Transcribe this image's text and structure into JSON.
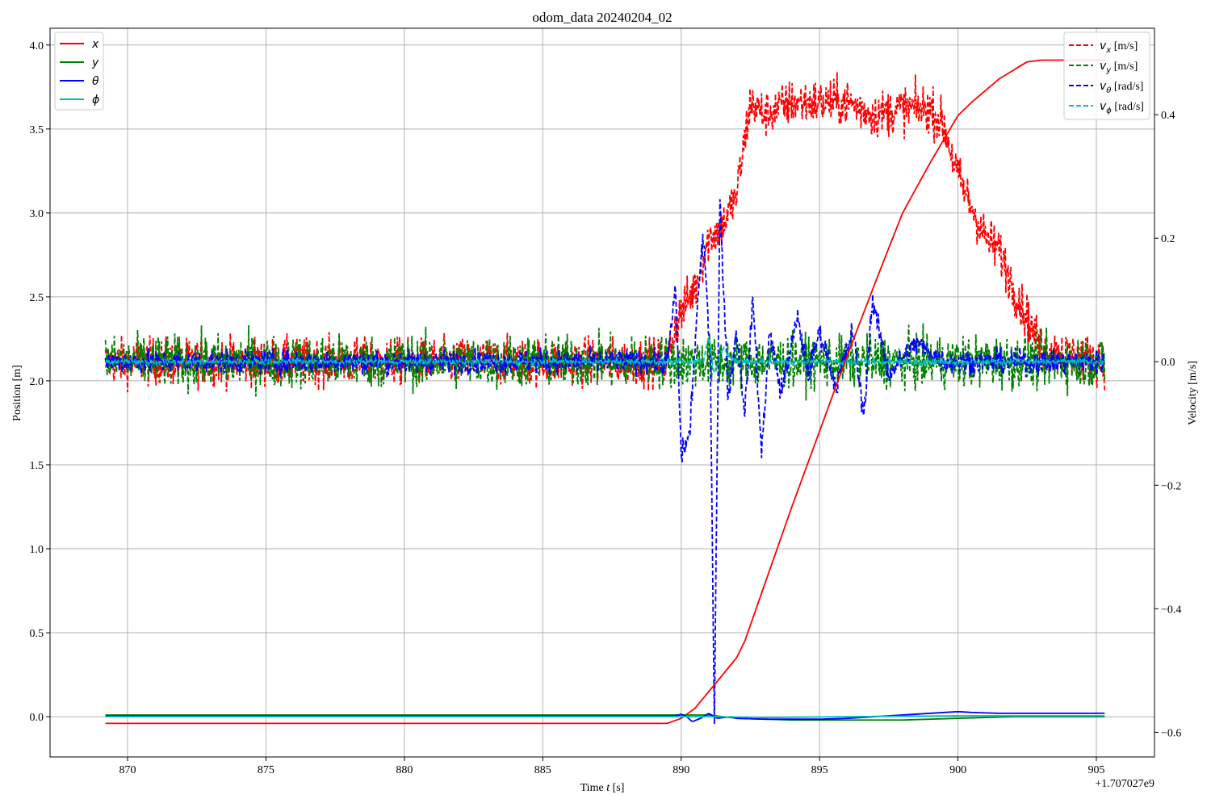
{
  "chart_data": {
    "type": "line",
    "title": "odom_data 20240204_02",
    "xlabel": "Time $t$ [s]",
    "xlabel_parts": {
      "prefix": "Time ",
      "italic": "t",
      "suffix": " [s]"
    },
    "x_offset_label": "+1.707027e9",
    "ylabel_left": "Position [m]",
    "ylabel_right": "Velocity [m/s]",
    "xlim": [
      867.2,
      907.1
    ],
    "ylim_left": [
      -0.24,
      4.1
    ],
    "ylim_right": [
      -0.64,
      0.54
    ],
    "xticks": [
      870,
      875,
      880,
      885,
      890,
      895,
      900,
      905
    ],
    "xtick_labels": [
      "870",
      "875",
      "880",
      "885",
      "890",
      "895",
      "900",
      "905"
    ],
    "yticks_left": [
      0.0,
      0.5,
      1.0,
      1.5,
      2.0,
      2.5,
      3.0,
      3.5,
      4.0
    ],
    "ytick_left_labels": [
      "0.0",
      "0.5",
      "1.0",
      "1.5",
      "2.0",
      "2.5",
      "3.0",
      "3.5",
      "4.0"
    ],
    "yticks_right": [
      -0.6,
      -0.4,
      -0.2,
      0.0,
      0.2,
      0.4
    ],
    "ytick_right_labels": [
      "−0.6",
      "−0.4",
      "−0.2",
      "0.0",
      "0.2",
      "0.4"
    ],
    "grid": true,
    "legend_left": {
      "placement": "top-left",
      "entries": [
        {
          "symbol": "x",
          "color": "#ff0000"
        },
        {
          "symbol": "y",
          "color": "#008000"
        },
        {
          "symbol": "θ",
          "color": "#0000ff"
        },
        {
          "symbol": "ϕ",
          "color": "#00bfbf"
        }
      ]
    },
    "legend_right": {
      "placement": "top-right",
      "entries": [
        {
          "symbol": "v",
          "sub": "x",
          "unit": "[m/s]",
          "color": "#ff0000"
        },
        {
          "symbol": "v",
          "sub": "y",
          "unit": "[m/s]",
          "color": "#008000"
        },
        {
          "symbol": "v",
          "sub": "θ",
          "unit": "[rad/s]",
          "color": "#0000ff"
        },
        {
          "symbol": "v",
          "sub": "ϕ",
          "unit": "[rad/s]",
          "color": "#00bfbf"
        }
      ]
    },
    "position_series": [
      {
        "name": "x",
        "color": "#ff0000",
        "axis": "left",
        "points": [
          [
            869.2,
            -0.04
          ],
          [
            889.5,
            -0.04
          ],
          [
            890.0,
            -0.01
          ],
          [
            890.5,
            0.05
          ],
          [
            891.0,
            0.15
          ],
          [
            891.5,
            0.25
          ],
          [
            892.0,
            0.35
          ],
          [
            892.3,
            0.45
          ],
          [
            893.0,
            0.78
          ],
          [
            894.0,
            1.25
          ],
          [
            895.0,
            1.7
          ],
          [
            896.0,
            2.15
          ],
          [
            897.0,
            2.58
          ],
          [
            898.0,
            3.0
          ],
          [
            899.0,
            3.3
          ],
          [
            900.0,
            3.58
          ],
          [
            900.5,
            3.66
          ],
          [
            901.0,
            3.73
          ],
          [
            901.5,
            3.8
          ],
          [
            902.0,
            3.85
          ],
          [
            902.5,
            3.9
          ],
          [
            903.0,
            3.91
          ],
          [
            905.3,
            3.91
          ]
        ]
      },
      {
        "name": "y",
        "color": "#008000",
        "axis": "left",
        "points": [
          [
            869.2,
            0.01
          ],
          [
            891.0,
            0.01
          ],
          [
            892.0,
            -0.01
          ],
          [
            894.0,
            -0.02
          ],
          [
            896.0,
            -0.02
          ],
          [
            898.0,
            -0.02
          ],
          [
            900.0,
            -0.01
          ],
          [
            902.0,
            0.0
          ],
          [
            905.3,
            0.0
          ]
        ]
      },
      {
        "name": "θ",
        "color": "#0000ff",
        "axis": "left",
        "points": [
          [
            869.2,
            0.005
          ],
          [
            889.8,
            0.005
          ],
          [
            890.0,
            0.015
          ],
          [
            890.2,
            0.0
          ],
          [
            890.4,
            -0.03
          ],
          [
            890.7,
            -0.01
          ],
          [
            891.0,
            0.02
          ],
          [
            891.3,
            -0.01
          ],
          [
            891.8,
            0.0
          ],
          [
            892.0,
            -0.01
          ],
          [
            893.0,
            -0.015
          ],
          [
            895.0,
            -0.015
          ],
          [
            896.0,
            -0.01
          ],
          [
            897.0,
            0.0
          ],
          [
            898.0,
            0.01
          ],
          [
            899.0,
            0.02
          ],
          [
            900.0,
            0.03
          ],
          [
            900.5,
            0.025
          ],
          [
            901.5,
            0.02
          ],
          [
            905.3,
            0.02
          ]
        ]
      },
      {
        "name": "ϕ",
        "color": "#00bfbf",
        "axis": "left",
        "points": [
          [
            869.2,
            0.0
          ],
          [
            891.0,
            0.0
          ],
          [
            893.0,
            -0.005
          ],
          [
            896.0,
            0.0
          ],
          [
            900.0,
            0.005
          ],
          [
            905.3,
            0.005
          ]
        ]
      }
    ],
    "velocity_series": [
      {
        "name": "v_x",
        "color": "#ff0000",
        "axis": "right",
        "noise": 0.036,
        "points": [
          [
            869.2,
            0.0
          ],
          [
            889.5,
            0.0
          ],
          [
            889.8,
            0.06
          ],
          [
            890.0,
            0.08
          ],
          [
            890.5,
            0.12
          ],
          [
            891.0,
            0.2
          ],
          [
            891.5,
            0.22
          ],
          [
            892.0,
            0.27
          ],
          [
            892.5,
            0.42
          ],
          [
            893.0,
            0.4
          ],
          [
            894.0,
            0.42
          ],
          [
            895.0,
            0.42
          ],
          [
            896.0,
            0.42
          ],
          [
            897.0,
            0.4
          ],
          [
            898.0,
            0.41
          ],
          [
            899.0,
            0.41
          ],
          [
            899.5,
            0.38
          ],
          [
            900.0,
            0.3
          ],
          [
            900.5,
            0.25
          ],
          [
            901.0,
            0.2
          ],
          [
            901.5,
            0.18
          ],
          [
            902.0,
            0.12
          ],
          [
            902.5,
            0.07
          ],
          [
            903.0,
            0.02
          ],
          [
            905.3,
            0.0
          ]
        ]
      },
      {
        "name": "v_y",
        "color": "#008000",
        "axis": "right",
        "noise": 0.04,
        "points": [
          [
            869.2,
            0.0
          ],
          [
            905.3,
            0.0
          ]
        ]
      },
      {
        "name": "v_θ",
        "color": "#0000ff",
        "axis": "right",
        "noise": 0.018,
        "points": [
          [
            869.2,
            0.0
          ],
          [
            889.5,
            0.0
          ],
          [
            889.8,
            0.12
          ],
          [
            890.0,
            -0.15
          ],
          [
            890.3,
            -0.12
          ],
          [
            890.6,
            0.1
          ],
          [
            890.8,
            0.2
          ],
          [
            891.05,
            0.02
          ],
          [
            891.2,
            -0.58
          ],
          [
            891.4,
            0.26
          ],
          [
            891.7,
            -0.06
          ],
          [
            892.0,
            0.05
          ],
          [
            892.3,
            -0.08
          ],
          [
            892.6,
            0.1
          ],
          [
            892.9,
            -0.15
          ],
          [
            893.2,
            0.05
          ],
          [
            893.6,
            -0.05
          ],
          [
            894.2,
            0.07
          ],
          [
            894.6,
            -0.02
          ],
          [
            895.0,
            0.05
          ],
          [
            895.6,
            -0.04
          ],
          [
            896.2,
            0.05
          ],
          [
            896.6,
            -0.09
          ],
          [
            896.9,
            0.1
          ],
          [
            897.5,
            -0.02
          ],
          [
            898.5,
            0.03
          ],
          [
            899.5,
            0.0
          ],
          [
            905.3,
            0.0
          ]
        ]
      },
      {
        "name": "v_ϕ",
        "color": "#00bfbf",
        "axis": "right",
        "noise": 0.004,
        "points": [
          [
            869.2,
            0.0
          ],
          [
            890.8,
            0.0
          ],
          [
            891.0,
            0.04
          ],
          [
            891.2,
            -0.02
          ],
          [
            891.5,
            0.02
          ],
          [
            892.0,
            0.0
          ],
          [
            897.0,
            0.0
          ],
          [
            905.3,
            0.0
          ]
        ]
      }
    ]
  }
}
